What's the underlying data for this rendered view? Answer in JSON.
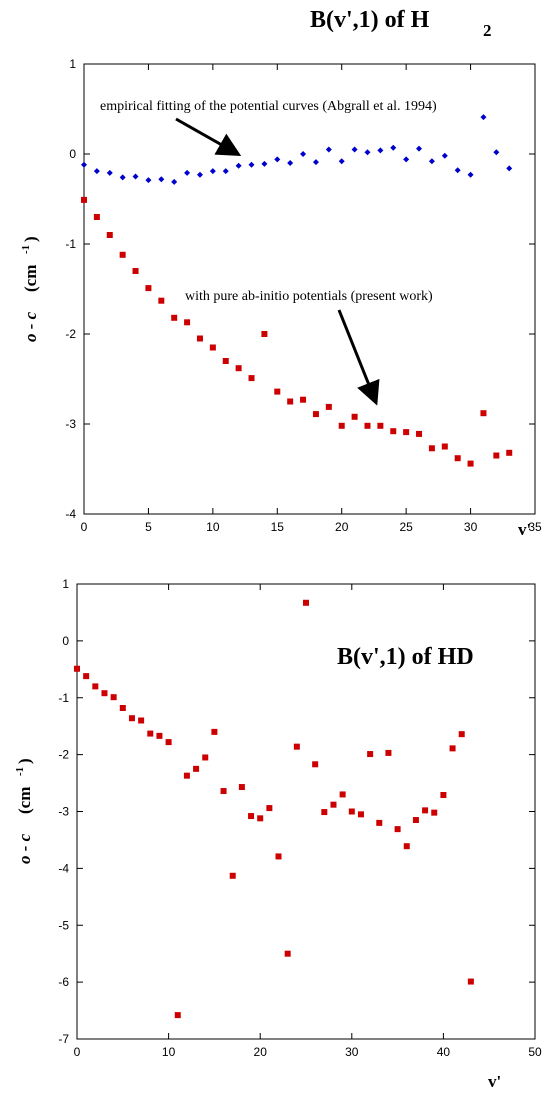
{
  "chart_data": [
    {
      "type": "scatter",
      "title_main": "B(v',1) of H",
      "title_sub": "2",
      "xlabel": "v'",
      "ylabel_main": "o - c",
      "ylabel_unit": "(cm",
      "ylabel_exp": "-1",
      "ylabel_close": ")",
      "xlim": [
        0,
        35
      ],
      "ylim": [
        -4,
        1
      ],
      "xticks": [
        0,
        5,
        10,
        15,
        20,
        25,
        30,
        35
      ],
      "yticks": [
        1,
        0,
        -1,
        -2,
        -3,
        -4
      ],
      "grid": false,
      "colors": {
        "blue": "#0000cc",
        "red": "#cc0000"
      },
      "annotations": [
        {
          "text": "empirical fitting of the potential curves (Abgrall et al. 1994)"
        },
        {
          "text": "with  pure ab-initio potentials  (present work)"
        }
      ],
      "series": [
        {
          "marker": "diamond",
          "color": "#0000cc",
          "x": [
            0,
            1,
            2,
            3,
            4,
            5,
            6,
            7,
            8,
            9,
            10,
            11,
            12,
            13,
            14,
            15,
            16,
            17,
            18,
            19,
            20,
            21,
            22,
            23,
            24,
            25,
            26,
            27,
            28,
            29,
            30,
            31,
            32,
            33
          ],
          "y": [
            -0.12,
            -0.19,
            -0.21,
            -0.26,
            -0.25,
            -0.29,
            -0.28,
            -0.31,
            -0.21,
            -0.23,
            -0.19,
            -0.19,
            -0.13,
            -0.12,
            -0.11,
            -0.06,
            -0.1,
            0.0,
            -0.09,
            0.05,
            -0.08,
            0.05,
            0.02,
            0.04,
            0.07,
            -0.06,
            0.06,
            -0.08,
            -0.02,
            -0.18,
            -0.23,
            0.41,
            0.02,
            -0.16
          ]
        },
        {
          "marker": "square",
          "color": "#cc0000",
          "x": [
            0,
            1,
            2,
            3,
            4,
            5,
            6,
            7,
            8,
            9,
            10,
            11,
            12,
            13,
            14,
            15,
            16,
            17,
            18,
            19,
            20,
            21,
            22,
            23,
            24,
            25,
            26,
            27,
            28,
            29,
            30,
            31,
            32,
            33
          ],
          "y": [
            -0.51,
            -0.7,
            -0.9,
            -1.12,
            -1.3,
            -1.49,
            -1.63,
            -1.82,
            -1.87,
            -2.05,
            -2.15,
            -2.3,
            -2.38,
            -2.49,
            -2.0,
            -2.64,
            -2.75,
            -2.73,
            -2.89,
            -2.81,
            -3.02,
            -2.92,
            -3.02,
            -3.02,
            -3.08,
            -3.09,
            -3.11,
            -3.27,
            -3.25,
            -3.38,
            -3.44,
            -2.88,
            -3.35,
            -3.32
          ]
        }
      ]
    },
    {
      "type": "scatter",
      "title_main": "B(v',1) of HD",
      "xlabel": "v'",
      "ylabel_main": "o - c",
      "ylabel_unit": "(cm",
      "ylabel_exp": "-1",
      "ylabel_close": ")",
      "xlim": [
        0,
        50
      ],
      "ylim": [
        -7,
        1
      ],
      "xticks": [
        0,
        10,
        20,
        30,
        40,
        50
      ],
      "yticks": [
        1,
        0,
        -1,
        -2,
        -3,
        -4,
        -5,
        -6,
        -7
      ],
      "grid": false,
      "series": [
        {
          "marker": "square",
          "color": "#cc0000",
          "x": [
            0,
            1,
            2,
            3,
            4,
            5,
            6,
            7,
            8,
            9,
            10,
            11,
            12,
            13,
            14,
            15,
            16,
            17,
            18,
            19,
            20,
            21,
            22,
            23,
            24,
            25,
            26,
            27,
            28,
            29,
            30,
            31,
            32,
            33,
            34,
            35,
            36,
            37,
            38,
            39,
            40,
            41,
            42,
            43
          ],
          "y": [
            -0.49,
            -0.62,
            -0.8,
            -0.92,
            -0.99,
            -1.18,
            -1.36,
            -1.4,
            -1.63,
            -1.67,
            -1.78,
            -6.58,
            -2.37,
            -2.25,
            -2.05,
            -1.6,
            -2.64,
            -4.13,
            -2.57,
            -3.08,
            -3.12,
            -2.94,
            -3.79,
            -5.5,
            -1.86,
            0.67,
            -2.17,
            -3.01,
            -2.88,
            -2.7,
            -3.0,
            -3.05,
            -1.99,
            -3.2,
            -1.97,
            -3.31,
            -3.61,
            -3.15,
            -2.98,
            -3.02,
            -2.71,
            -1.89,
            -1.64,
            -5.99
          ]
        }
      ]
    }
  ]
}
